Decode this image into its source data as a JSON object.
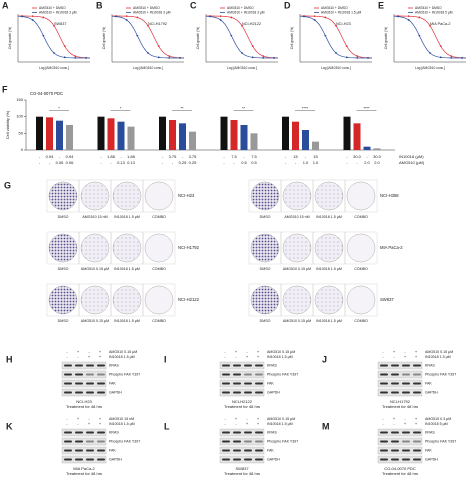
{
  "panels": {
    "curves": [
      {
        "label": "A",
        "legend": [
          "AMG510 + DMSO",
          "AMG510 + IN10018 3 μM"
        ],
        "cell_line": "SW837",
        "y_label": "Cell growth (%)",
        "x_label": "Log [AMG510 conc.]"
      },
      {
        "label": "B",
        "legend": [
          "AMG510 + DMSO",
          "AMG510 + IN10018 3 μM"
        ],
        "cell_line": "NCI-H1792",
        "y_label": "Cell growth (%)",
        "x_label": "Log [AMG510 conc.]"
      },
      {
        "label": "C",
        "legend": [
          "AMG510 + DMSO",
          "AMG510 + IN10018 3 μM"
        ],
        "cell_line": "NCI-H2122",
        "y_label": "Cell growth (%)",
        "x_label": "Log [AMG510 conc.]"
      },
      {
        "label": "D",
        "legend": [
          "AMG510 + DMSO",
          "AMG510 + IN10018 1.5 μM"
        ],
        "cell_line": "NCI-H23",
        "y_label": "Cell growth (%)",
        "x_label": "Log [AMG510 conc.]"
      },
      {
        "label": "E",
        "legend": [
          "AMG510 + DMSO",
          "AMG510 + IN10018 5 μM"
        ],
        "cell_line": "MIA PaCa-2",
        "y_label": "Cell growth (%)",
        "x_label": "Log [AMG510 conc.]"
      }
    ],
    "viability": {
      "label": "F",
      "title": "CO-04-0070 PDC",
      "y_label": "Cell viability (%)",
      "ylim": [
        0,
        150
      ],
      "yticks": [
        0,
        50,
        100,
        150
      ],
      "colors": [
        "#111111",
        "#d62728",
        "#2a4d9b",
        "#999999"
      ],
      "row_labels": [
        "IN10018 (μM)",
        "AMG510 (μM)"
      ],
      "groups": [
        {
          "values": [
            100,
            98,
            88,
            75
          ],
          "significance": "*",
          "in10018": [
            "-",
            "0.94",
            "-",
            "0.94"
          ],
          "amg510": [
            "-",
            "-",
            "0.06",
            "0.06"
          ]
        },
        {
          "values": [
            100,
            95,
            85,
            70
          ],
          "significance": "*",
          "in10018": [
            "-",
            "1.88",
            "-",
            "1.88"
          ],
          "amg510": [
            "-",
            "-",
            "0.13",
            "0.13"
          ]
        },
        {
          "values": [
            100,
            90,
            80,
            55
          ],
          "significance": "**",
          "in10018": [
            "-",
            "3.75",
            "-",
            "3.75"
          ],
          "amg510": [
            "-",
            "-",
            "0.25",
            "0.25"
          ]
        },
        {
          "values": [
            100,
            90,
            75,
            50
          ],
          "significance": "**",
          "in10018": [
            "-",
            "7.5",
            "-",
            "7.5"
          ],
          "amg510": [
            "-",
            "-",
            "0.5",
            "0.5"
          ]
        },
        {
          "values": [
            100,
            85,
            60,
            25
          ],
          "significance": "****",
          "in10018": [
            "-",
            "15",
            "-",
            "15"
          ],
          "amg510": [
            "-",
            "-",
            "1.0",
            "1.0"
          ]
        },
        {
          "values": [
            100,
            80,
            10,
            5
          ],
          "significance": "****",
          "in10018": [
            "-",
            "30.0",
            "-",
            "30.0"
          ],
          "amg510": [
            "-",
            "-",
            "2.0",
            "2.0"
          ]
        }
      ]
    },
    "colony": {
      "label": "G",
      "left": [
        {
          "cell_line": "NCI-H23",
          "conditions": [
            "DMSO",
            "AMG510 15 nM",
            "IN10018 1.5 μM",
            "COMBO"
          ]
        },
        {
          "cell_line": "NCI-H1792",
          "conditions": [
            "DMSO",
            "AMG510 0.15 μM",
            "IN10018 1.5 μM",
            "COMBO"
          ]
        },
        {
          "cell_line": "NCI-H2122",
          "conditions": [
            "DMSO",
            "AMG510 0.15 μM",
            "IN10018 1.5 μM",
            "COMBO"
          ]
        }
      ],
      "right": [
        {
          "cell_line": "NCI-H358",
          "conditions": [
            "DMSO",
            "AMG510 15 nM",
            "IN10018 1.5 μM",
            "COMBO"
          ]
        },
        {
          "cell_line": "MIA PaCa-2",
          "conditions": [
            "DMSO",
            "AMG510 0.15 μM",
            "IN10018 1.5 μM",
            "COMBO"
          ]
        },
        {
          "cell_line": "SW837",
          "conditions": [
            "DMSO",
            "AMG510 0.15 μM",
            "IN10018 1.5 μM",
            "COMBO"
          ]
        }
      ]
    },
    "blots": [
      {
        "label": "H",
        "treatments": [
          {
            "name": "AMG510 0.15 μM",
            "marks": [
              "-",
              "+",
              "-",
              "+"
            ]
          },
          {
            "name": "IN10018 1.5 μM",
            "marks": [
              "-",
              "-",
              "+",
              "+"
            ]
          }
        ],
        "proteins": [
          "KRAS",
          "Phospho FAK Y397",
          "FAK",
          "GAPDH"
        ],
        "cell_line": "NCI-H23",
        "note": "Treatment for 48 hrs"
      },
      {
        "label": "I",
        "treatments": [
          {
            "name": "AMG510 0.15 μM",
            "marks": [
              "-",
              "+",
              "-",
              "+"
            ]
          },
          {
            "name": "IN10018 1.5 μM",
            "marks": [
              "-",
              "-",
              "+",
              "+"
            ]
          }
        ],
        "proteins": [
          "KRAS",
          "Phospho FAK Y397",
          "FAK",
          "GAPDH"
        ],
        "cell_line": "NCI-H2122",
        "note": "Treatment for 48 hrs"
      },
      {
        "label": "J",
        "treatments": [
          {
            "name": "AMG510 0.15 μM",
            "marks": [
              "-",
              "+",
              "-",
              "+"
            ]
          },
          {
            "name": "IN10018 1.5 μM",
            "marks": [
              "-",
              "-",
              "+",
              "+"
            ]
          }
        ],
        "proteins": [
          "KRAS",
          "Phospho FAK Y397",
          "FAK",
          "GAPDH"
        ],
        "cell_line": "NCI-H1792",
        "note": "Treatment for 48 hrs"
      },
      {
        "label": "K",
        "treatments": [
          {
            "name": "AMG510 15 nM",
            "marks": [
              "-",
              "+",
              "-",
              "+"
            ]
          },
          {
            "name": "IN10018 1.5 μM",
            "marks": [
              "-",
              "-",
              "+",
              "+"
            ]
          }
        ],
        "proteins": [
          "KRAS",
          "Phospho FAK Y397",
          "FAK",
          "GAPDH"
        ],
        "cell_line": "MIA PaCa-2",
        "note": "Treatment for 48 hrs"
      },
      {
        "label": "L",
        "treatments": [
          {
            "name": "AMG510 0.15 μM",
            "marks": [
              "-",
              "+",
              "-",
              "+"
            ]
          },
          {
            "name": "IN10018 1.5 μM",
            "marks": [
              "-",
              "-",
              "+",
              "+"
            ]
          }
        ],
        "proteins": [
          "KRAS",
          "Phospho FAK Y397",
          "FAK",
          "GAPDH"
        ],
        "cell_line": "SW837",
        "note": "Treatment for 48 hrs"
      },
      {
        "label": "M",
        "treatments": [
          {
            "name": "AMG510 0.3 μM",
            "marks": [
              "-",
              "+",
              "-",
              "+"
            ]
          },
          {
            "name": "IN10018 5 μM",
            "marks": [
              "-",
              "-",
              "+",
              "+"
            ]
          }
        ],
        "proteins": [
          "KRAS",
          "Phospho FAK Y397",
          "FAK",
          "GAPDH"
        ],
        "cell_line": "CO-04-0070 PDC",
        "note": "Treatment for 48 hrs"
      }
    ]
  }
}
